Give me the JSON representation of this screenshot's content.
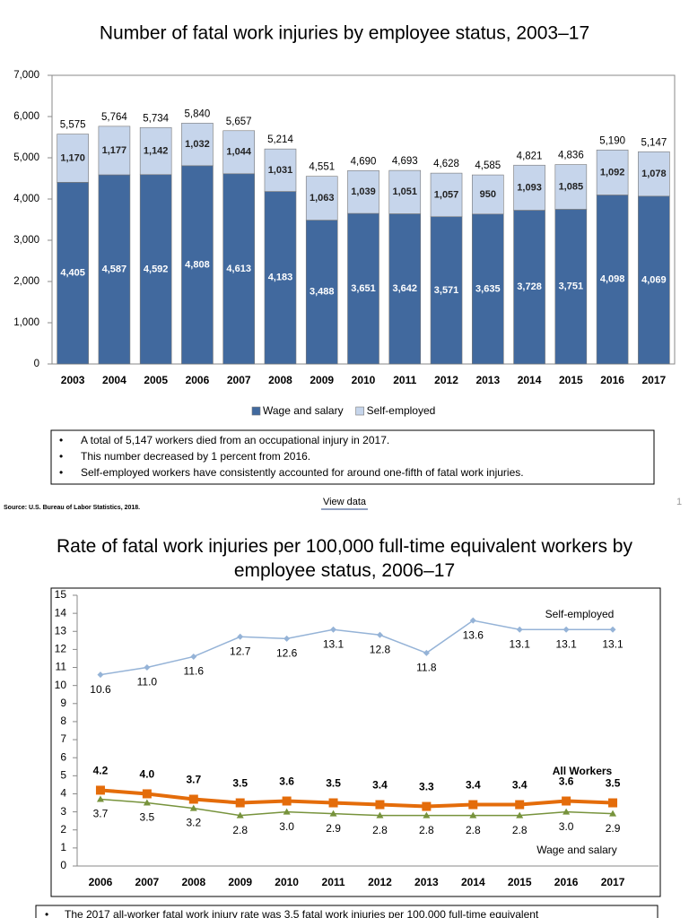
{
  "chart_data": [
    {
      "type": "stacked_bar",
      "title": "Number of fatal work injuries by employee status, 2003–17",
      "categories": [
        "2003",
        "2004",
        "2005",
        "2006",
        "2007",
        "2008",
        "2009",
        "2010",
        "2011",
        "2012",
        "2013",
        "2014",
        "2015",
        "2016",
        "2017"
      ],
      "series": [
        {
          "name": "Wage and salary",
          "color": "#41699e",
          "values": [
            4405,
            4587,
            4592,
            4808,
            4613,
            4183,
            3488,
            3651,
            3642,
            3571,
            3635,
            3728,
            3751,
            4098,
            4069
          ],
          "value_labels": [
            "4,405",
            "4,587",
            "4,592",
            "4,808",
            "4,613",
            "4,183",
            "3,488",
            "3,651",
            "3,642",
            "3,571",
            "3,635",
            "3,728",
            "3,751",
            "4,098",
            "4,069"
          ]
        },
        {
          "name": "Self-employed",
          "color": "#c6d5eb",
          "values": [
            1170,
            1177,
            1142,
            1032,
            1044,
            1031,
            1063,
            1039,
            1051,
            1057,
            950,
            1093,
            1085,
            1092,
            1078
          ],
          "value_labels": [
            "1,170",
            "1,177",
            "1,142",
            "1,032",
            "1,044",
            "1,031",
            "1,063",
            "1,039",
            "1,051",
            "1,057",
            "950",
            "1,093",
            "1,085",
            "1,092",
            "1,078"
          ]
        }
      ],
      "totals": {
        "values": [
          5575,
          5764,
          5734,
          5840,
          5657,
          5214,
          4551,
          4690,
          4693,
          4628,
          4585,
          4821,
          4836,
          5190,
          5147
        ],
        "value_labels": [
          "5,575",
          "5,764",
          "5,734",
          "5,840",
          "5,657",
          "5,214",
          "4,551",
          "4,690",
          "4,693",
          "4,628",
          "4,585",
          "4,821",
          "4,836",
          "5,190",
          "5,147"
        ]
      },
      "ylim": [
        0,
        7000
      ],
      "yticks": [
        0,
        {
          "value": 1000,
          "label": "1,000"
        },
        {
          "value": 2000,
          "label": "2,000"
        },
        {
          "value": 3000,
          "label": "3,000"
        },
        {
          "value": 4000,
          "label": "4,000"
        },
        {
          "value": 5000,
          "label": "5,000"
        },
        {
          "value": 6000,
          "label": "6,000"
        },
        {
          "value": 7000,
          "label": "7,000"
        }
      ],
      "grid": false,
      "legend": "bottom"
    },
    {
      "type": "line",
      "title": "Rate of fatal work injuries per 100,000 full-time equivalent workers by employee status, 2006–17",
      "categories": [
        "2006",
        "2007",
        "2008",
        "2009",
        "2010",
        "2011",
        "2012",
        "2013",
        "2014",
        "2015",
        "2016",
        "2017"
      ],
      "series": [
        {
          "name": "Self-employed",
          "color": "#95b3d7",
          "marker": "diamond",
          "values": [
            10.6,
            11.0,
            11.6,
            12.7,
            12.6,
            13.1,
            12.8,
            11.8,
            13.6,
            13.1,
            13.1,
            13.1
          ],
          "value_labels": [
            "10.6",
            "11.0",
            "11.6",
            "12.7",
            "12.6",
            "13.1",
            "12.8",
            "11.8",
            "13.6",
            "13.1",
            "13.1",
            "13.1"
          ]
        },
        {
          "name": "All Workers",
          "color": "#e46c0a",
          "marker": "square",
          "values": [
            4.2,
            4.0,
            3.7,
            3.5,
            3.6,
            3.5,
            3.4,
            3.3,
            3.4,
            3.4,
            3.6,
            3.5
          ],
          "value_labels": [
            "4.2",
            "4.0",
            "3.7",
            "3.5",
            "3.6",
            "3.5",
            "3.4",
            "3.3",
            "3.4",
            "3.4",
            "3.6",
            "3.5"
          ]
        },
        {
          "name": "Wage and salary",
          "color": "#77933c",
          "marker": "triangle",
          "values": [
            3.7,
            3.5,
            3.2,
            2.8,
            3.0,
            2.9,
            2.8,
            2.8,
            2.8,
            2.8,
            3.0,
            2.9
          ],
          "value_labels": [
            "3.7",
            "3.5",
            "3.2",
            "2.8",
            "3.0",
            "2.9",
            "2.8",
            "2.8",
            "2.8",
            "2.8",
            "3.0",
            "2.9"
          ]
        }
      ],
      "ylim": [
        0,
        15
      ],
      "yticks": [
        0,
        1,
        2,
        3,
        4,
        5,
        6,
        7,
        8,
        9,
        10,
        11,
        12,
        13,
        14,
        15
      ],
      "grid": false
    }
  ],
  "notes_1": [
    "A total of 5,147 workers died from an occupational injury in 2017.",
    "This number decreased by 1 percent from 2016.",
    "Self-employed workers have consistently accounted for around one-fifth of fatal work injuries."
  ],
  "source": "Source: U.S. Bureau of Labor Statistics, 2018.",
  "view_data": "View data",
  "page_number": 1,
  "notes_2": [
    "The 2017 all-worker fatal work injury rate was 3.5 fatal work injuries per 100,000 full-time equivalent"
  ]
}
